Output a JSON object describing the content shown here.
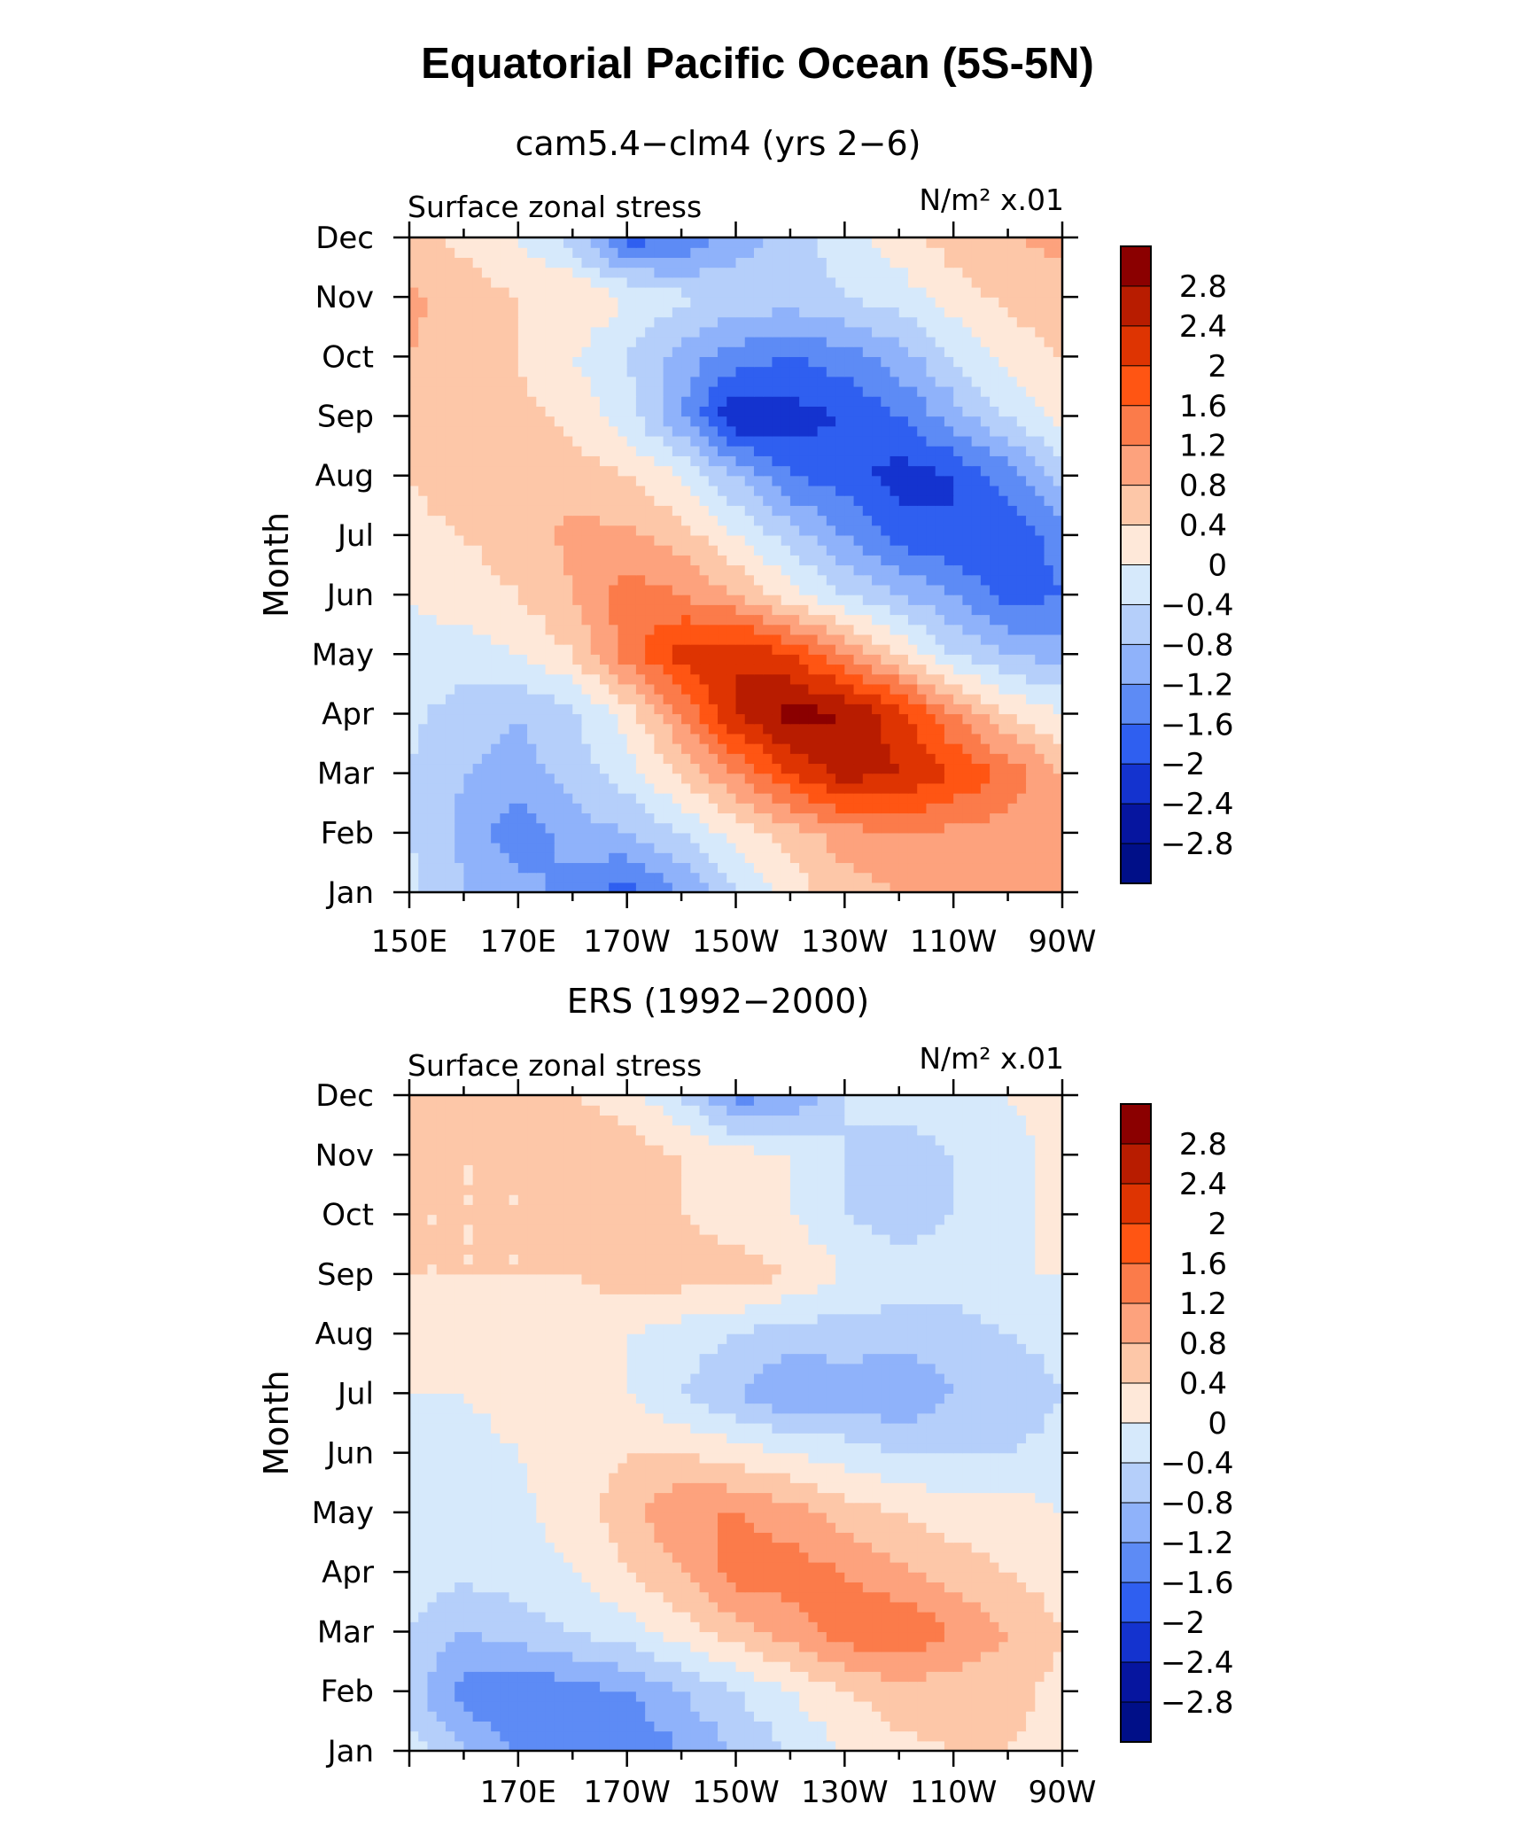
{
  "title": "Equatorial Pacific Ocean (5S-5N)",
  "colorbar": {
    "labels": [
      "2.8",
      "2.4",
      "2",
      "1.6",
      "1.2",
      "0.8",
      "0.4",
      "0",
      "−0.4",
      "−0.8",
      "−1.2",
      "−1.6",
      "−2",
      "−2.4",
      "−2.8"
    ],
    "colors": [
      "#8b0000",
      "#b81c00",
      "#de3402",
      "#ff5513",
      "#fb7b4a",
      "#fda27d",
      "#fdc7a8",
      "#fee8d9",
      "#d6e9fb",
      "#b5cffa",
      "#8fb2fa",
      "#5d8bf5",
      "#2f5ff0",
      "#1433cf",
      "#06159f",
      "#000f88"
    ]
  },
  "chart_data": [
    {
      "type": "heatmap",
      "subtitle": "cam5.4−clm4 (yrs 2−6)",
      "left_label": "Surface zonal stress",
      "units": "N/m² x.01",
      "ylabel": "Month",
      "xlabel": "",
      "x_ticks": [
        "150E",
        "170E",
        "170W",
        "150W",
        "130W",
        "110W",
        "90W"
      ],
      "y_ticks": [
        "Jan",
        "Feb",
        "Mar",
        "Apr",
        "May",
        "Jun",
        "Jul",
        "Aug",
        "Sep",
        "Oct",
        "Nov",
        "Dec"
      ],
      "x": [
        "150E",
        "160E",
        "170E",
        "180",
        "170W",
        "160W",
        "150W",
        "140W",
        "130W",
        "120W",
        "110W",
        "100W",
        "90W"
      ],
      "y": [
        "Jan",
        "Feb",
        "Mar",
        "Apr",
        "May",
        "Jun",
        "Jul",
        "Aug",
        "Sep",
        "Oct",
        "Nov",
        "Dec"
      ],
      "z": [
        [
          -0.3,
          -0.8,
          -1.0,
          -1.4,
          -1.8,
          -1.2,
          -0.5,
          0.2,
          0.6,
          0.8,
          0.9,
          0.9,
          0.8
        ],
        [
          -0.4,
          -0.9,
          -1.5,
          -1.0,
          -0.8,
          -0.4,
          0.2,
          0.6,
          1.0,
          1.2,
          1.1,
          1.0,
          0.8
        ],
        [
          -0.4,
          -0.8,
          -1.0,
          -0.6,
          -0.2,
          0.5,
          1.2,
          2.0,
          2.6,
          2.4,
          2.0,
          1.5,
          0.8
        ],
        [
          -0.3,
          -0.6,
          -0.8,
          -0.5,
          0.2,
          1.2,
          2.4,
          3.0,
          2.8,
          2.2,
          1.2,
          0.4,
          0.0
        ],
        [
          -0.1,
          -0.2,
          0.0,
          0.4,
          1.4,
          2.2,
          2.4,
          2.0,
          1.2,
          0.4,
          -0.4,
          -0.8,
          -1.0
        ],
        [
          0.0,
          0.2,
          0.4,
          0.8,
          1.4,
          1.2,
          0.8,
          0.2,
          -0.4,
          -0.8,
          -1.2,
          -1.8,
          -1.6
        ],
        [
          0.2,
          0.4,
          0.6,
          0.9,
          0.9,
          0.6,
          0.0,
          -0.6,
          -1.2,
          -1.8,
          -2.0,
          -2.0,
          -1.4
        ],
        [
          0.4,
          0.8,
          0.8,
          0.6,
          0.4,
          0.0,
          -0.8,
          -1.6,
          -1.8,
          -2.2,
          -2.0,
          -1.4,
          -0.6
        ],
        [
          0.6,
          0.6,
          0.5,
          0.3,
          -0.2,
          -1.2,
          -2.4,
          -2.2,
          -2.0,
          -1.6,
          -1.0,
          -0.4,
          0.2
        ],
        [
          0.8,
          0.6,
          0.4,
          0.0,
          -0.4,
          -1.0,
          -1.4,
          -1.6,
          -1.4,
          -1.0,
          -0.4,
          0.2,
          0.4
        ],
        [
          0.9,
          0.6,
          0.4,
          0.4,
          0.0,
          -0.3,
          -0.5,
          -0.6,
          -0.4,
          -0.2,
          0.2,
          0.5,
          0.6
        ],
        [
          0.5,
          0.3,
          0.0,
          -0.6,
          -1.8,
          -1.6,
          -1.0,
          -0.6,
          -0.2,
          0.2,
          0.6,
          0.8,
          0.9
        ]
      ],
      "levels": [
        -2.8,
        -2.4,
        -2.0,
        -1.6,
        -1.2,
        -0.8,
        -0.4,
        0,
        0.4,
        0.8,
        1.2,
        1.6,
        2.0,
        2.4,
        2.8
      ]
    },
    {
      "type": "heatmap",
      "subtitle": "ERS (1992−2000)",
      "left_label": "Surface zonal stress",
      "units": "N/m² x.01",
      "ylabel": "Month",
      "xlabel": "",
      "x_ticks": [
        "170E",
        "170W",
        "150W",
        "130W",
        "110W",
        "90W"
      ],
      "y_ticks": [
        "Jan",
        "Feb",
        "Mar",
        "Apr",
        "May",
        "Jun",
        "Jul",
        "Aug",
        "Sep",
        "Oct",
        "Nov",
        "Dec"
      ],
      "x": [
        "150E",
        "160E",
        "170E",
        "180",
        "170W",
        "160W",
        "150W",
        "140W",
        "130W",
        "120W",
        "110W",
        "100W",
        "90W"
      ],
      "y": [
        "Jan",
        "Feb",
        "Mar",
        "Apr",
        "May",
        "Jun",
        "Jul",
        "Aug",
        "Sep",
        "Oct",
        "Nov",
        "Dec"
      ],
      "z": [
        [
          -0.2,
          -0.8,
          -1.2,
          -1.4,
          -1.6,
          -1.2,
          -0.8,
          -0.4,
          0.0,
          0.3,
          0.4,
          0.4,
          0.3
        ],
        [
          -0.6,
          -1.4,
          -1.6,
          -1.4,
          -1.2,
          -0.8,
          -0.4,
          0.0,
          0.4,
          0.6,
          0.6,
          0.5,
          0.3
        ],
        [
          -0.4,
          -0.8,
          -0.6,
          -0.4,
          -0.2,
          0.2,
          0.6,
          1.0,
          1.4,
          1.6,
          1.2,
          0.8,
          0.4
        ],
        [
          -0.2,
          -0.3,
          -0.2,
          0.0,
          0.4,
          0.8,
          1.4,
          1.4,
          1.2,
          0.9,
          0.6,
          0.4,
          0.2
        ],
        [
          -0.2,
          -0.2,
          -0.1,
          0.2,
          0.6,
          1.2,
          1.2,
          1.0,
          0.6,
          0.4,
          0.2,
          0.2,
          0.0
        ],
        [
          -0.4,
          -0.2,
          0.0,
          0.2,
          0.4,
          0.4,
          0.2,
          0.0,
          -0.2,
          -0.4,
          -0.4,
          -0.4,
          -0.2
        ],
        [
          0.0,
          0.0,
          0.2,
          0.2,
          0.0,
          -0.4,
          -0.8,
          -1.2,
          -1.0,
          -1.2,
          -0.8,
          -0.8,
          -0.4
        ],
        [
          0.2,
          0.2,
          0.3,
          0.2,
          0.0,
          -0.2,
          -0.4,
          -0.6,
          -0.6,
          -0.6,
          -0.6,
          -0.4,
          -0.2
        ],
        [
          0.4,
          0.4,
          0.4,
          0.4,
          0.6,
          0.6,
          0.6,
          0.4,
          0.0,
          -0.2,
          -0.2,
          0.0,
          0.0
        ],
        [
          0.4,
          0.4,
          0.4,
          0.6,
          0.6,
          0.4,
          0.2,
          0.0,
          -0.4,
          -0.6,
          -0.4,
          -0.2,
          0.2
        ],
        [
          0.6,
          0.4,
          0.4,
          0.8,
          0.6,
          0.4,
          0.2,
          0.0,
          -0.4,
          -0.6,
          -0.4,
          -0.2,
          0.2
        ],
        [
          0.6,
          0.6,
          0.4,
          0.4,
          0.2,
          -0.4,
          -1.4,
          -1.2,
          -0.4,
          -0.2,
          -0.2,
          0.0,
          0.2
        ]
      ],
      "levels": [
        -2.8,
        -2.4,
        -2.0,
        -1.6,
        -1.2,
        -0.8,
        -0.4,
        0,
        0.4,
        0.8,
        1.2,
        1.6,
        2.0,
        2.4,
        2.8
      ]
    }
  ]
}
